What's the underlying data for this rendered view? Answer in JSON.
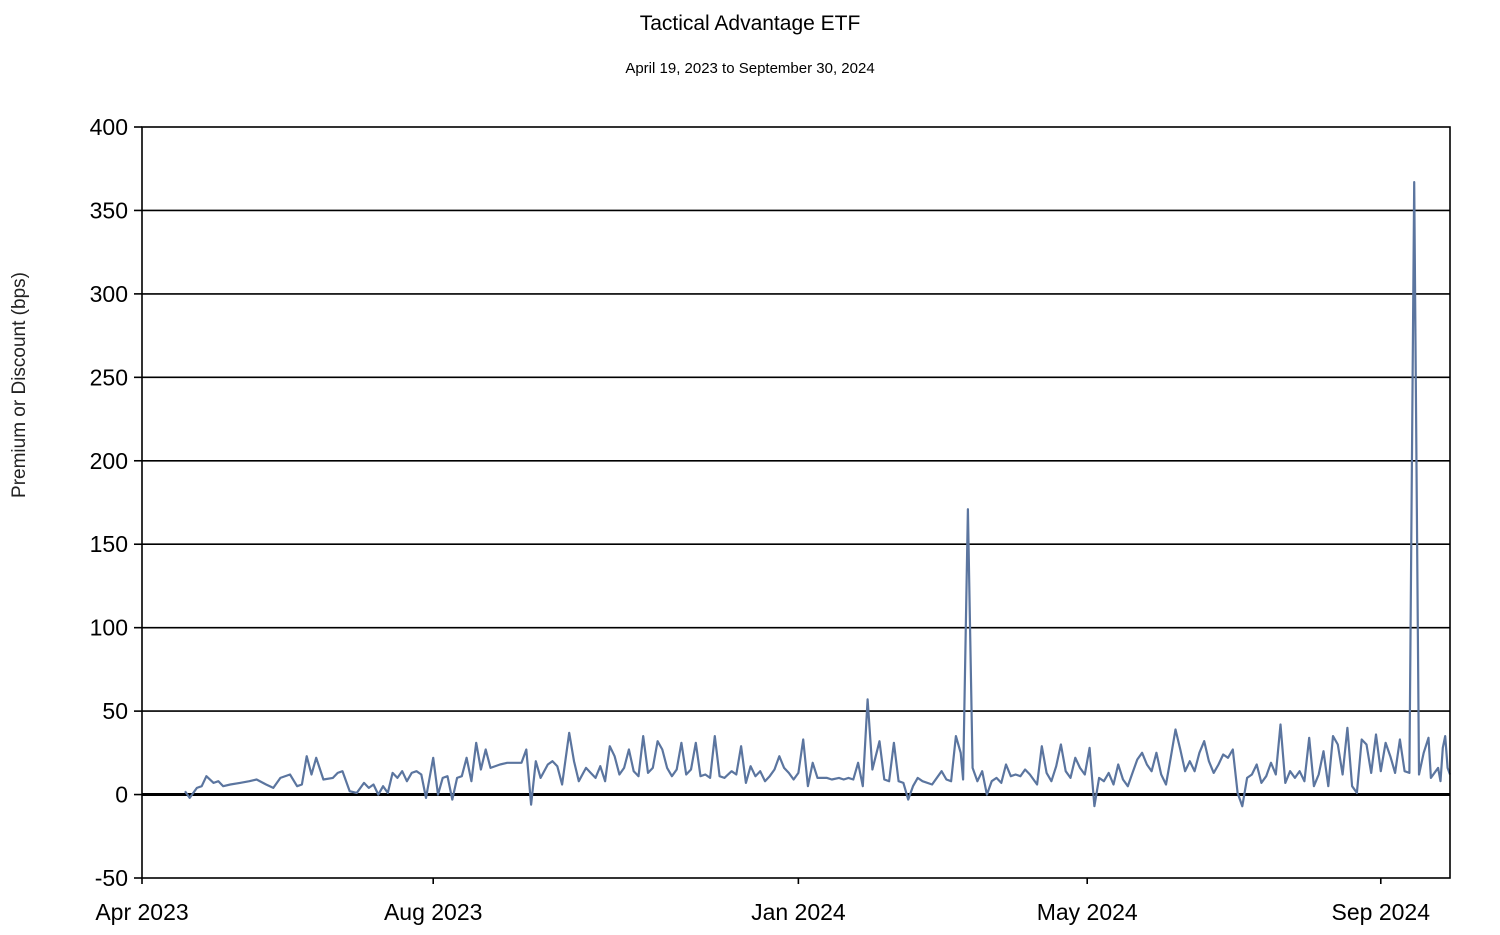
{
  "chart_data": {
    "type": "line",
    "title": "Tactical Advantage ETF",
    "subtitle": "April 19, 2023 to September 30, 2024",
    "ylabel": "Premium or Discount (bps)",
    "xlabel": "",
    "ylim": [
      -50,
      400
    ],
    "yticks": [
      -50,
      0,
      50,
      100,
      150,
      200,
      250,
      300,
      350,
      400
    ],
    "xlim": [
      "2023-04-01",
      "2024-09-30"
    ],
    "xticks": [
      {
        "date": "2023-04-01",
        "label": "Apr 2023"
      },
      {
        "date": "2023-08-01",
        "label": "Aug 2023"
      },
      {
        "date": "2024-01-01",
        "label": "Jan 2024"
      },
      {
        "date": "2024-05-01",
        "label": "May 2024"
      },
      {
        "date": "2024-09-01",
        "label": "Sep 2024"
      }
    ],
    "grid": true,
    "line_color": "#5b759f",
    "series": [
      {
        "points": [
          [
            "2023-04-19",
            2
          ],
          [
            "2023-04-21",
            -2
          ],
          [
            "2023-04-24",
            4
          ],
          [
            "2023-04-26",
            5
          ],
          [
            "2023-04-28",
            11
          ],
          [
            "2023-05-01",
            7
          ],
          [
            "2023-05-03",
            8
          ],
          [
            "2023-05-05",
            5
          ],
          [
            "2023-05-08",
            6
          ],
          [
            "2023-05-12",
            7
          ],
          [
            "2023-05-16",
            8
          ],
          [
            "2023-05-19",
            9
          ],
          [
            "2023-05-23",
            6
          ],
          [
            "2023-05-26",
            4
          ],
          [
            "2023-05-29",
            10
          ],
          [
            "2023-06-02",
            12
          ],
          [
            "2023-06-05",
            5
          ],
          [
            "2023-06-07",
            6
          ],
          [
            "2023-06-09",
            23
          ],
          [
            "2023-06-11",
            12
          ],
          [
            "2023-06-13",
            22
          ],
          [
            "2023-06-16",
            9
          ],
          [
            "2023-06-20",
            10
          ],
          [
            "2023-06-22",
            13
          ],
          [
            "2023-06-24",
            14
          ],
          [
            "2023-06-27",
            2
          ],
          [
            "2023-06-30",
            1
          ],
          [
            "2023-07-03",
            7
          ],
          [
            "2023-07-05",
            4
          ],
          [
            "2023-07-07",
            6
          ],
          [
            "2023-07-09",
            0
          ],
          [
            "2023-07-11",
            5
          ],
          [
            "2023-07-13",
            1
          ],
          [
            "2023-07-15",
            13
          ],
          [
            "2023-07-17",
            10
          ],
          [
            "2023-07-19",
            14
          ],
          [
            "2023-07-21",
            8
          ],
          [
            "2023-07-23",
            13
          ],
          [
            "2023-07-25",
            14
          ],
          [
            "2023-07-27",
            12
          ],
          [
            "2023-07-29",
            -2
          ],
          [
            "2023-08-01",
            22
          ],
          [
            "2023-08-03",
            0
          ],
          [
            "2023-08-05",
            10
          ],
          [
            "2023-08-07",
            11
          ],
          [
            "2023-08-09",
            -3
          ],
          [
            "2023-08-11",
            10
          ],
          [
            "2023-08-13",
            11
          ],
          [
            "2023-08-15",
            22
          ],
          [
            "2023-08-17",
            8
          ],
          [
            "2023-08-19",
            31
          ],
          [
            "2023-08-21",
            15
          ],
          [
            "2023-08-23",
            27
          ],
          [
            "2023-08-25",
            16
          ],
          [
            "2023-08-29",
            18
          ],
          [
            "2023-09-01",
            19
          ],
          [
            "2023-09-05",
            19
          ],
          [
            "2023-09-07",
            19
          ],
          [
            "2023-09-09",
            27
          ],
          [
            "2023-09-11",
            -6
          ],
          [
            "2023-09-13",
            20
          ],
          [
            "2023-09-15",
            10
          ],
          [
            "2023-09-18",
            18
          ],
          [
            "2023-09-20",
            20
          ],
          [
            "2023-09-22",
            17
          ],
          [
            "2023-09-24",
            6
          ],
          [
            "2023-09-27",
            37
          ],
          [
            "2023-09-29",
            20
          ],
          [
            "2023-10-01",
            8
          ],
          [
            "2023-10-04",
            16
          ],
          [
            "2023-10-06",
            13
          ],
          [
            "2023-10-08",
            10
          ],
          [
            "2023-10-10",
            17
          ],
          [
            "2023-10-12",
            8
          ],
          [
            "2023-10-14",
            29
          ],
          [
            "2023-10-16",
            23
          ],
          [
            "2023-10-18",
            12
          ],
          [
            "2023-10-20",
            16
          ],
          [
            "2023-10-22",
            27
          ],
          [
            "2023-10-24",
            14
          ],
          [
            "2023-10-26",
            11
          ],
          [
            "2023-10-28",
            35
          ],
          [
            "2023-10-30",
            13
          ],
          [
            "2023-11-01",
            16
          ],
          [
            "2023-11-03",
            32
          ],
          [
            "2023-11-05",
            27
          ],
          [
            "2023-11-07",
            16
          ],
          [
            "2023-11-09",
            11
          ],
          [
            "2023-11-11",
            15
          ],
          [
            "2023-11-13",
            31
          ],
          [
            "2023-11-15",
            12
          ],
          [
            "2023-11-17",
            15
          ],
          [
            "2023-11-19",
            31
          ],
          [
            "2023-11-21",
            11
          ],
          [
            "2023-11-23",
            12
          ],
          [
            "2023-11-25",
            10
          ],
          [
            "2023-11-27",
            35
          ],
          [
            "2023-11-29",
            11
          ],
          [
            "2023-12-01",
            10
          ],
          [
            "2023-12-04",
            14
          ],
          [
            "2023-12-06",
            12
          ],
          [
            "2023-12-08",
            29
          ],
          [
            "2023-12-10",
            7
          ],
          [
            "2023-12-12",
            17
          ],
          [
            "2023-12-14",
            11
          ],
          [
            "2023-12-16",
            14
          ],
          [
            "2023-12-18",
            8
          ],
          [
            "2023-12-20",
            11
          ],
          [
            "2023-12-22",
            15
          ],
          [
            "2023-12-24",
            23
          ],
          [
            "2023-12-26",
            16
          ],
          [
            "2023-12-28",
            13
          ],
          [
            "2023-12-30",
            9
          ],
          [
            "2024-01-01",
            13
          ],
          [
            "2024-01-03",
            33
          ],
          [
            "2024-01-05",
            5
          ],
          [
            "2024-01-07",
            19
          ],
          [
            "2024-01-09",
            10
          ],
          [
            "2024-01-11",
            10
          ],
          [
            "2024-01-13",
            10
          ],
          [
            "2024-01-15",
            9
          ],
          [
            "2024-01-18",
            10
          ],
          [
            "2024-01-20",
            9
          ],
          [
            "2024-01-22",
            10
          ],
          [
            "2024-01-24",
            9
          ],
          [
            "2024-01-26",
            19
          ],
          [
            "2024-01-28",
            5
          ],
          [
            "2024-01-30",
            57
          ],
          [
            "2024-02-01",
            15
          ],
          [
            "2024-02-04",
            32
          ],
          [
            "2024-02-06",
            9
          ],
          [
            "2024-02-08",
            8
          ],
          [
            "2024-02-10",
            31
          ],
          [
            "2024-02-12",
            8
          ],
          [
            "2024-02-14",
            7
          ],
          [
            "2024-02-16",
            -3
          ],
          [
            "2024-02-18",
            5
          ],
          [
            "2024-02-20",
            10
          ],
          [
            "2024-02-22",
            8
          ],
          [
            "2024-02-26",
            6
          ],
          [
            "2024-03-01",
            14
          ],
          [
            "2024-03-03",
            9
          ],
          [
            "2024-03-05",
            8
          ],
          [
            "2024-03-07",
            35
          ],
          [
            "2024-03-09",
            25
          ],
          [
            "2024-03-10",
            9
          ],
          [
            "2024-03-12",
            171
          ],
          [
            "2024-03-14",
            16
          ],
          [
            "2024-03-16",
            8
          ],
          [
            "2024-03-18",
            14
          ],
          [
            "2024-03-20",
            0
          ],
          [
            "2024-03-22",
            8
          ],
          [
            "2024-03-24",
            10
          ],
          [
            "2024-03-26",
            7
          ],
          [
            "2024-03-28",
            18
          ],
          [
            "2024-03-30",
            11
          ],
          [
            "2024-04-01",
            12
          ],
          [
            "2024-04-03",
            11
          ],
          [
            "2024-04-05",
            15
          ],
          [
            "2024-04-07",
            12
          ],
          [
            "2024-04-10",
            6
          ],
          [
            "2024-04-12",
            29
          ],
          [
            "2024-04-14",
            13
          ],
          [
            "2024-04-16",
            8
          ],
          [
            "2024-04-18",
            17
          ],
          [
            "2024-04-20",
            30
          ],
          [
            "2024-04-22",
            14
          ],
          [
            "2024-04-24",
            10
          ],
          [
            "2024-04-26",
            22
          ],
          [
            "2024-04-28",
            16
          ],
          [
            "2024-04-30",
            12
          ],
          [
            "2024-05-02",
            28
          ],
          [
            "2024-05-04",
            -7
          ],
          [
            "2024-05-06",
            10
          ],
          [
            "2024-05-08",
            8
          ],
          [
            "2024-05-10",
            13
          ],
          [
            "2024-05-12",
            6
          ],
          [
            "2024-05-14",
            18
          ],
          [
            "2024-05-16",
            9
          ],
          [
            "2024-05-18",
            5
          ],
          [
            "2024-05-20",
            13
          ],
          [
            "2024-05-22",
            21
          ],
          [
            "2024-05-24",
            25
          ],
          [
            "2024-05-26",
            18
          ],
          [
            "2024-05-28",
            14
          ],
          [
            "2024-05-30",
            25
          ],
          [
            "2024-06-01",
            12
          ],
          [
            "2024-06-03",
            6
          ],
          [
            "2024-06-05",
            22
          ],
          [
            "2024-06-07",
            39
          ],
          [
            "2024-06-09",
            27
          ],
          [
            "2024-06-11",
            14
          ],
          [
            "2024-06-13",
            20
          ],
          [
            "2024-06-15",
            14
          ],
          [
            "2024-06-17",
            25
          ],
          [
            "2024-06-19",
            32
          ],
          [
            "2024-06-21",
            20
          ],
          [
            "2024-06-23",
            13
          ],
          [
            "2024-06-25",
            18
          ],
          [
            "2024-06-27",
            24
          ],
          [
            "2024-06-29",
            22
          ],
          [
            "2024-07-01",
            27
          ],
          [
            "2024-07-03",
            1
          ],
          [
            "2024-07-05",
            -7
          ],
          [
            "2024-07-07",
            10
          ],
          [
            "2024-07-09",
            12
          ],
          [
            "2024-07-11",
            18
          ],
          [
            "2024-07-13",
            7
          ],
          [
            "2024-07-15",
            11
          ],
          [
            "2024-07-17",
            19
          ],
          [
            "2024-07-19",
            12
          ],
          [
            "2024-07-21",
            42
          ],
          [
            "2024-07-23",
            7
          ],
          [
            "2024-07-25",
            14
          ],
          [
            "2024-07-27",
            10
          ],
          [
            "2024-07-29",
            14
          ],
          [
            "2024-07-31",
            8
          ],
          [
            "2024-08-02",
            34
          ],
          [
            "2024-08-04",
            5
          ],
          [
            "2024-08-06",
            12
          ],
          [
            "2024-08-08",
            26
          ],
          [
            "2024-08-10",
            5
          ],
          [
            "2024-08-12",
            35
          ],
          [
            "2024-08-14",
            30
          ],
          [
            "2024-08-16",
            12
          ],
          [
            "2024-08-18",
            40
          ],
          [
            "2024-08-20",
            5
          ],
          [
            "2024-08-22",
            1
          ],
          [
            "2024-08-24",
            33
          ],
          [
            "2024-08-26",
            30
          ],
          [
            "2024-08-28",
            13
          ],
          [
            "2024-08-30",
            36
          ],
          [
            "2024-09-01",
            14
          ],
          [
            "2024-09-03",
            31
          ],
          [
            "2024-09-05",
            23
          ],
          [
            "2024-09-07",
            13
          ],
          [
            "2024-09-09",
            33
          ],
          [
            "2024-09-11",
            14
          ],
          [
            "2024-09-13",
            13
          ],
          [
            "2024-09-15",
            367
          ],
          [
            "2024-09-17",
            12
          ],
          [
            "2024-09-19",
            25
          ],
          [
            "2024-09-21",
            34
          ],
          [
            "2024-09-22",
            10
          ],
          [
            "2024-09-24",
            14
          ],
          [
            "2024-09-25",
            16
          ],
          [
            "2024-09-26",
            8
          ],
          [
            "2024-09-27",
            28
          ],
          [
            "2024-09-28",
            35
          ],
          [
            "2024-09-29",
            16
          ],
          [
            "2024-09-30",
            12
          ]
        ]
      }
    ]
  }
}
